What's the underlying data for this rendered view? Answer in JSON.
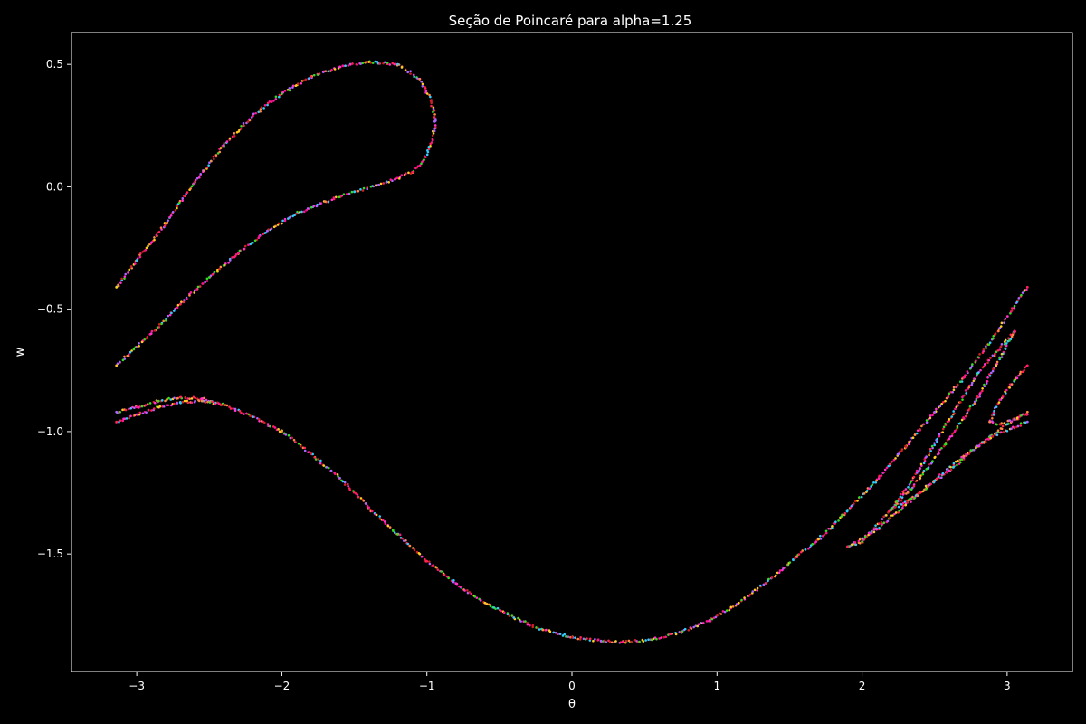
{
  "chart_data": {
    "type": "scatter",
    "title": "Seção de Poincaré para alpha=1.25",
    "xlabel": "θ",
    "ylabel": "w",
    "xlim": [
      -3.45,
      3.45
    ],
    "ylim": [
      -1.98,
      0.63
    ],
    "xticks": [
      -3,
      -2,
      -1,
      0,
      1,
      2,
      3
    ],
    "xtick_labels": [
      "−3",
      "−2",
      "−1",
      "0",
      "1",
      "2",
      "3"
    ],
    "yticks": [
      0.5,
      0.0,
      -0.5,
      -1.0,
      -1.5
    ],
    "ytick_labels": [
      "0.5",
      "0.0",
      "−0.5",
      "−1.0",
      "−1.5"
    ],
    "grid": false,
    "background": "#000000",
    "foreground": "#ffffff",
    "point_colors": [
      "#ff1493",
      "#33dd22",
      "#ff2255",
      "#ff33cc",
      "#ffcc22",
      "#33ccff",
      "#ff8844",
      "#cc2222",
      "#aa66ff"
    ],
    "series": [
      {
        "values": [
          {
            "x": -3.14,
            "y": -0.41
          },
          {
            "x": -3.0,
            "y": -0.3
          },
          {
            "x": -2.8,
            "y": -0.15
          },
          {
            "x": -2.6,
            "y": 0.02
          },
          {
            "x": -2.4,
            "y": 0.17
          },
          {
            "x": -2.2,
            "y": 0.29
          },
          {
            "x": -2.0,
            "y": 0.38
          },
          {
            "x": -1.8,
            "y": 0.45
          },
          {
            "x": -1.6,
            "y": 0.49
          },
          {
            "x": -1.4,
            "y": 0.51
          },
          {
            "x": -1.2,
            "y": 0.5
          },
          {
            "x": -1.05,
            "y": 0.44
          },
          {
            "x": -0.97,
            "y": 0.35
          },
          {
            "x": -0.94,
            "y": 0.27
          },
          {
            "x": -0.96,
            "y": 0.19
          },
          {
            "x": -1.02,
            "y": 0.11
          },
          {
            "x": -1.1,
            "y": 0.06
          },
          {
            "x": -1.22,
            "y": 0.03
          },
          {
            "x": -1.35,
            "y": 0.005
          },
          {
            "x": -1.5,
            "y": -0.02
          },
          {
            "x": -1.7,
            "y": -0.06
          },
          {
            "x": -1.9,
            "y": -0.11
          },
          {
            "x": -2.1,
            "y": -0.18
          },
          {
            "x": -2.3,
            "y": -0.27
          },
          {
            "x": -2.5,
            "y": -0.37
          },
          {
            "x": -2.7,
            "y": -0.48
          },
          {
            "x": -2.9,
            "y": -0.6
          },
          {
            "x": -3.14,
            "y": -0.73
          }
        ]
      },
      {
        "values": [
          {
            "x": -3.14,
            "y": -0.92
          },
          {
            "x": -3.0,
            "y": -0.9
          },
          {
            "x": -2.85,
            "y": -0.875
          },
          {
            "x": -2.7,
            "y": -0.86
          },
          {
            "x": -2.55,
            "y": -0.865
          },
          {
            "x": -2.4,
            "y": -0.89
          },
          {
            "x": -2.2,
            "y": -0.94
          },
          {
            "x": -2.0,
            "y": -1.0
          },
          {
            "x": -1.8,
            "y": -1.09
          },
          {
            "x": -1.6,
            "y": -1.19
          },
          {
            "x": -1.4,
            "y": -1.31
          },
          {
            "x": -1.2,
            "y": -1.42
          },
          {
            "x": -1.0,
            "y": -1.53
          },
          {
            "x": -0.8,
            "y": -1.62
          },
          {
            "x": -0.6,
            "y": -1.7
          },
          {
            "x": -0.4,
            "y": -1.76
          },
          {
            "x": -0.2,
            "y": -1.81
          },
          {
            "x": 0.0,
            "y": -1.84
          },
          {
            "x": 0.2,
            "y": -1.855
          },
          {
            "x": 0.35,
            "y": -1.86
          },
          {
            "x": 0.55,
            "y": -1.85
          },
          {
            "x": 0.75,
            "y": -1.82
          },
          {
            "x": 0.95,
            "y": -1.77
          },
          {
            "x": 1.15,
            "y": -1.7
          },
          {
            "x": 1.35,
            "y": -1.61
          },
          {
            "x": 1.55,
            "y": -1.51
          },
          {
            "x": 1.7,
            "y": -1.44
          }
        ]
      },
      {
        "values": [
          {
            "x": -3.14,
            "y": -0.96
          },
          {
            "x": -3.0,
            "y": -0.93
          },
          {
            "x": -2.85,
            "y": -0.9
          },
          {
            "x": -2.7,
            "y": -0.88
          },
          {
            "x": -2.55,
            "y": -0.875
          },
          {
            "x": -2.4,
            "y": -0.89
          }
        ]
      },
      {
        "values": [
          {
            "x": 1.7,
            "y": -1.44
          },
          {
            "x": 1.9,
            "y": -1.32
          },
          {
            "x": 2.1,
            "y": -1.2
          },
          {
            "x": 2.3,
            "y": -1.06
          },
          {
            "x": 2.5,
            "y": -0.92
          },
          {
            "x": 2.7,
            "y": -0.78
          },
          {
            "x": 2.9,
            "y": -0.62
          },
          {
            "x": 3.14,
            "y": -0.41
          }
        ]
      },
      {
        "values": [
          {
            "x": 1.9,
            "y": -1.47
          },
          {
            "x": 2.0,
            "y": -1.45
          },
          {
            "x": 2.2,
            "y": -1.32
          },
          {
            "x": 2.4,
            "y": -1.15
          },
          {
            "x": 2.6,
            "y": -0.95
          },
          {
            "x": 2.8,
            "y": -0.76
          },
          {
            "x": 3.05,
            "y": -0.59
          }
        ]
      },
      {
        "values": [
          {
            "x": 3.05,
            "y": -0.59
          },
          {
            "x": 2.95,
            "y": -0.7
          },
          {
            "x": 2.8,
            "y": -0.86
          },
          {
            "x": 2.6,
            "y": -1.03
          },
          {
            "x": 2.4,
            "y": -1.19
          },
          {
            "x": 2.2,
            "y": -1.32
          }
        ]
      },
      {
        "values": [
          {
            "x": 2.2,
            "y": -1.32
          },
          {
            "x": 2.4,
            "y": -1.25
          },
          {
            "x": 2.6,
            "y": -1.16
          },
          {
            "x": 2.8,
            "y": -1.06
          },
          {
            "x": 3.0,
            "y": -0.97
          },
          {
            "x": 3.14,
            "y": -0.92
          }
        ]
      },
      {
        "values": [
          {
            "x": 1.9,
            "y": -1.47
          },
          {
            "x": 2.1,
            "y": -1.4
          },
          {
            "x": 2.3,
            "y": -1.3
          },
          {
            "x": 2.5,
            "y": -1.2
          },
          {
            "x": 2.7,
            "y": -1.1
          },
          {
            "x": 2.9,
            "y": -1.02
          },
          {
            "x": 3.14,
            "y": -0.96
          }
        ]
      },
      {
        "values": [
          {
            "x": 2.88,
            "y": -0.96
          },
          {
            "x": 2.95,
            "y": -0.87
          },
          {
            "x": 3.05,
            "y": -0.79
          },
          {
            "x": 3.14,
            "y": -0.73
          }
        ]
      },
      {
        "values": [
          {
            "x": 2.88,
            "y": -0.96
          },
          {
            "x": 2.95,
            "y": -0.97
          },
          {
            "x": 3.05,
            "y": -0.95
          },
          {
            "x": 3.14,
            "y": -0.93
          }
        ]
      }
    ]
  }
}
